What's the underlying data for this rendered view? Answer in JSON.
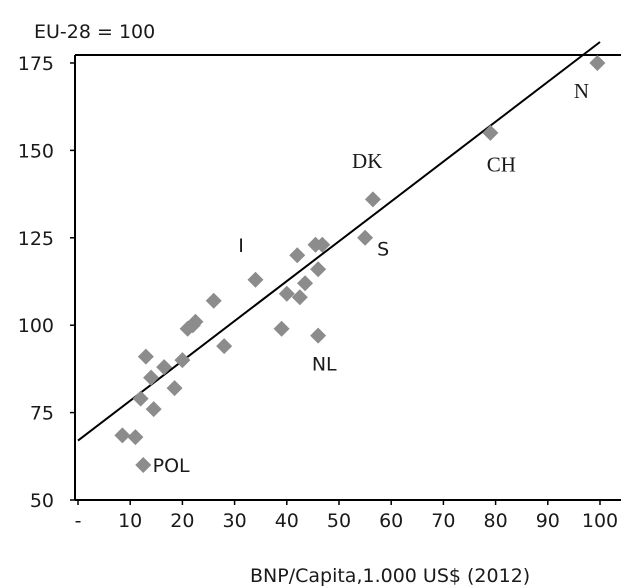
{
  "chart_data": {
    "type": "scatter",
    "ylabel": "EU-28 = 100",
    "xlabel": "BNP/Capita,1.000 US$ (2012)",
    "xlim": [
      0,
      100
    ],
    "ylim": [
      50,
      180
    ],
    "x_ticks": [
      "-",
      "10",
      "20",
      "30",
      "40",
      "50",
      "60",
      "70",
      "80",
      "90",
      "100"
    ],
    "y_ticks": [
      "50",
      "75",
      "100",
      "125",
      "150",
      "175"
    ],
    "grid": false,
    "legend": "none",
    "marker_color": "#8c8c8c",
    "line_color": "#000000",
    "trendline": {
      "x": [
        0,
        100
      ],
      "y": [
        67,
        181
      ]
    },
    "points": [
      {
        "x": 8.5,
        "y": 68.5
      },
      {
        "x": 11,
        "y": 68
      },
      {
        "x": 12.5,
        "y": 60
      },
      {
        "x": 12,
        "y": 79
      },
      {
        "x": 13,
        "y": 91
      },
      {
        "x": 14,
        "y": 85
      },
      {
        "x": 14.5,
        "y": 76
      },
      {
        "x": 16.5,
        "y": 88
      },
      {
        "x": 18.5,
        "y": 82
      },
      {
        "x": 20,
        "y": 90
      },
      {
        "x": 21,
        "y": 99
      },
      {
        "x": 22,
        "y": 100
      },
      {
        "x": 22.5,
        "y": 101
      },
      {
        "x": 26,
        "y": 107
      },
      {
        "x": 28,
        "y": 94
      },
      {
        "x": 34,
        "y": 113
      },
      {
        "x": 39,
        "y": 99
      },
      {
        "x": 40,
        "y": 109
      },
      {
        "x": 42,
        "y": 120
      },
      {
        "x": 42.5,
        "y": 108
      },
      {
        "x": 43.5,
        "y": 112
      },
      {
        "x": 45.5,
        "y": 123
      },
      {
        "x": 46,
        "y": 116
      },
      {
        "x": 46,
        "y": 97
      },
      {
        "x": 46.8,
        "y": 123
      },
      {
        "x": 55,
        "y": 125
      },
      {
        "x": 56.5,
        "y": 136
      },
      {
        "x": 79,
        "y": 155
      },
      {
        "x": 99.5,
        "y": 175
      }
    ],
    "annotations": [
      {
        "text": "POL",
        "x": 14.3,
        "y": 60,
        "font": "sans"
      },
      {
        "text": "I",
        "x": 30.7,
        "y": 123,
        "font": "sans"
      },
      {
        "text": "NL",
        "x": 44.8,
        "y": 89,
        "font": "sans"
      },
      {
        "text": "S",
        "x": 57.3,
        "y": 122,
        "font": "sans"
      },
      {
        "text": "DK",
        "x": 52.5,
        "y": 147,
        "font": "serif"
      },
      {
        "text": "CH",
        "x": 78.3,
        "y": 146,
        "font": "serif"
      },
      {
        "text": "N",
        "x": 95,
        "y": 167,
        "font": "serif"
      }
    ]
  }
}
